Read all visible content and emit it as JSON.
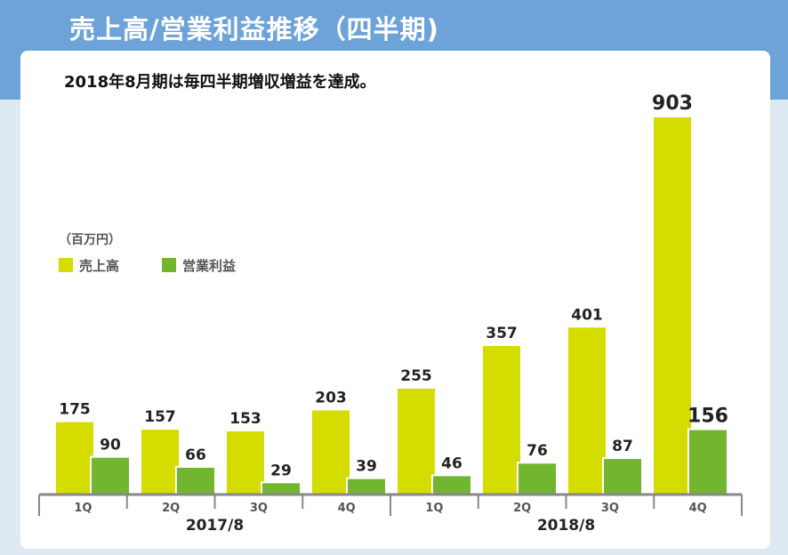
{
  "header": {
    "title": "売上高/営業利益推移（四半期)"
  },
  "subtitle": "2018年8月期は毎四半期増収増益を達成。",
  "colors": {
    "sales": "#d4dc00",
    "profit": "#72b52f",
    "header": "#6da3d9",
    "axis": "#888888"
  },
  "chart_data": {
    "type": "bar",
    "unit": "（百万円）",
    "categories": [
      "1Q",
      "2Q",
      "3Q",
      "4Q",
      "1Q",
      "2Q",
      "3Q",
      "4Q"
    ],
    "groups": [
      {
        "label": "2017/8",
        "span": 4
      },
      {
        "label": "2018/8",
        "span": 4
      }
    ],
    "series": [
      {
        "name": "売上高",
        "values": [
          175,
          157,
          153,
          203,
          255,
          357,
          401,
          903
        ]
      },
      {
        "name": "営業利益",
        "values": [
          90,
          66,
          29,
          39,
          46,
          76,
          87,
          156
        ]
      }
    ],
    "ylim": [
      0,
      903
    ]
  }
}
